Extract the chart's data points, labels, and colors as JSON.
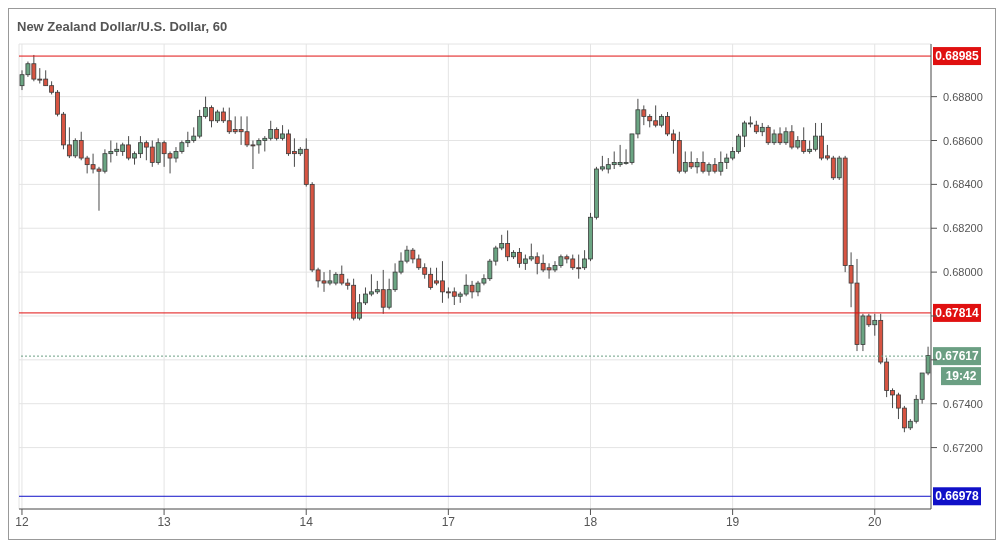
{
  "chart_data": {
    "type": "candlestick",
    "title": "New Zealand Dollar/U.S. Dollar, 60",
    "categories": [
      "12",
      null,
      null,
      null,
      null,
      null,
      null,
      null,
      null,
      null,
      null,
      null,
      null,
      null,
      null,
      null,
      null,
      null,
      null,
      null,
      null,
      null,
      null,
      null,
      "13",
      null,
      null,
      null,
      null,
      null,
      null,
      null,
      null,
      null,
      null,
      null,
      null,
      null,
      null,
      null,
      null,
      null,
      null,
      null,
      null,
      null,
      null,
      null,
      "14",
      null,
      null,
      null,
      null,
      null,
      null,
      null,
      null,
      null,
      null,
      null,
      null,
      null,
      null,
      null,
      null,
      null,
      null,
      null,
      null,
      null,
      null,
      null,
      "17",
      null,
      null,
      null,
      null,
      null,
      null,
      null,
      null,
      null,
      null,
      null,
      null,
      null,
      null,
      null,
      null,
      null,
      null,
      null,
      null,
      null,
      null,
      null,
      "18",
      null,
      null,
      null,
      null,
      null,
      null,
      null,
      null,
      null,
      null,
      null,
      null,
      null,
      null,
      null,
      null,
      null,
      null,
      null,
      null,
      null,
      null,
      null,
      "19",
      null,
      null,
      null,
      null,
      null,
      null,
      null,
      null,
      null,
      null,
      null,
      null,
      null,
      null,
      null,
      null,
      null,
      null,
      null,
      null,
      null,
      null,
      null,
      "20",
      null,
      null,
      null,
      null,
      null,
      null,
      null,
      null,
      null
    ],
    "ohlc": [
      [
        0.6885,
        0.6892,
        0.6883,
        0.689
      ],
      [
        0.689,
        0.6896,
        0.6889,
        0.6895
      ],
      [
        0.6895,
        0.6899,
        0.6887,
        0.6888
      ],
      [
        0.6888,
        0.6893,
        0.6886,
        0.6888
      ],
      [
        0.6888,
        0.6892,
        0.6885,
        0.6885
      ],
      [
        0.6885,
        0.6887,
        0.6881,
        0.6882
      ],
      [
        0.6882,
        0.6883,
        0.6871,
        0.6872
      ],
      [
        0.6872,
        0.6873,
        0.6856,
        0.6858
      ],
      [
        0.6858,
        0.6866,
        0.6852,
        0.6853
      ],
      [
        0.6853,
        0.6861,
        0.6852,
        0.686
      ],
      [
        0.686,
        0.6864,
        0.6851,
        0.6852
      ],
      [
        0.6852,
        0.6853,
        0.6845,
        0.6849
      ],
      [
        0.6849,
        0.6854,
        0.6845,
        0.6847
      ],
      [
        0.6847,
        0.6848,
        0.6828,
        0.6846
      ],
      [
        0.6846,
        0.6856,
        0.6845,
        0.6854
      ],
      [
        0.6854,
        0.686,
        0.685,
        0.6855
      ],
      [
        0.6855,
        0.6859,
        0.6853,
        0.6856
      ],
      [
        0.6855,
        0.6859,
        0.6853,
        0.6858
      ],
      [
        0.6858,
        0.6862,
        0.6851,
        0.6852
      ],
      [
        0.6852,
        0.6855,
        0.6849,
        0.6854
      ],
      [
        0.6854,
        0.6862,
        0.6852,
        0.6859
      ],
      [
        0.6859,
        0.686,
        0.6851,
        0.6857
      ],
      [
        0.6857,
        0.686,
        0.6848,
        0.685
      ],
      [
        0.685,
        0.6861,
        0.6849,
        0.6859
      ],
      [
        0.6859,
        0.686,
        0.6848,
        0.6854
      ],
      [
        0.6854,
        0.6855,
        0.6845,
        0.6852
      ],
      [
        0.6852,
        0.6857,
        0.685,
        0.6855
      ],
      [
        0.6855,
        0.686,
        0.6854,
        0.6859
      ],
      [
        0.6859,
        0.6864,
        0.6857,
        0.686
      ],
      [
        0.686,
        0.6866,
        0.6859,
        0.6862
      ],
      [
        0.6862,
        0.6874,
        0.6861,
        0.6871
      ],
      [
        0.6871,
        0.688,
        0.687,
        0.6875
      ],
      [
        0.6875,
        0.6876,
        0.6866,
        0.6869
      ],
      [
        0.6869,
        0.6874,
        0.6868,
        0.6873
      ],
      [
        0.6873,
        0.6875,
        0.6868,
        0.6869
      ],
      [
        0.6869,
        0.6875,
        0.6863,
        0.6864
      ],
      [
        0.6865,
        0.6871,
        0.6863,
        0.6864
      ],
      [
        0.6865,
        0.6871,
        0.6858,
        0.6864
      ],
      [
        0.6864,
        0.6871,
        0.6857,
        0.6858
      ],
      [
        0.6858,
        0.686,
        0.6847,
        0.6858
      ],
      [
        0.6858,
        0.6861,
        0.6854,
        0.686
      ],
      [
        0.686,
        0.6862,
        0.6855,
        0.6861
      ],
      [
        0.6861,
        0.6869,
        0.686,
        0.6865
      ],
      [
        0.6865,
        0.6866,
        0.686,
        0.6861
      ],
      [
        0.6861,
        0.6867,
        0.686,
        0.6863
      ],
      [
        0.6863,
        0.6865,
        0.6853,
        0.6854
      ],
      [
        0.6855,
        0.6861,
        0.6848,
        0.6854
      ],
      [
        0.6854,
        0.6857,
        0.6853,
        0.6856
      ],
      [
        0.6856,
        0.6861,
        0.6839,
        0.684
      ],
      [
        0.684,
        0.6841,
        0.68,
        0.6801
      ],
      [
        0.6801,
        0.6802,
        0.6793,
        0.6796
      ],
      [
        0.6796,
        0.68,
        0.6791,
        0.6795
      ],
      [
        0.6795,
        0.6801,
        0.6794,
        0.6796
      ],
      [
        0.6795,
        0.68,
        0.6794,
        0.6799
      ],
      [
        0.6799,
        0.6803,
        0.6794,
        0.6795
      ],
      [
        0.6795,
        0.6797,
        0.6792,
        0.6794
      ],
      [
        0.6794,
        0.6797,
        0.6778,
        0.6779
      ],
      [
        0.6779,
        0.679,
        0.6778,
        0.6786
      ],
      [
        0.6786,
        0.6793,
        0.6785,
        0.679
      ],
      [
        0.679,
        0.6799,
        0.6789,
        0.6791
      ],
      [
        0.6791,
        0.6796,
        0.679,
        0.6792
      ],
      [
        0.6792,
        0.6801,
        0.6781,
        0.6784
      ],
      [
        0.6784,
        0.6797,
        0.6783,
        0.6792
      ],
      [
        0.6792,
        0.6804,
        0.6791,
        0.68
      ],
      [
        0.68,
        0.6809,
        0.6799,
        0.6805
      ],
      [
        0.6805,
        0.6812,
        0.6804,
        0.681
      ],
      [
        0.681,
        0.6811,
        0.6804,
        0.6806
      ],
      [
        0.6806,
        0.6808,
        0.6801,
        0.6802
      ],
      [
        0.6802,
        0.6804,
        0.6797,
        0.6799
      ],
      [
        0.6799,
        0.6802,
        0.6792,
        0.6793
      ],
      [
        0.6796,
        0.6802,
        0.6794,
        0.6795
      ],
      [
        0.6796,
        0.6805,
        0.6786,
        0.6791
      ],
      [
        0.6791,
        0.6793,
        0.6788,
        0.6791
      ],
      [
        0.6791,
        0.6793,
        0.6785,
        0.6789
      ],
      [
        0.6789,
        0.6791,
        0.6786,
        0.679
      ],
      [
        0.679,
        0.6799,
        0.6789,
        0.6794
      ],
      [
        0.6794,
        0.6796,
        0.6788,
        0.6791
      ],
      [
        0.6791,
        0.6796,
        0.6789,
        0.6795
      ],
      [
        0.6795,
        0.6799,
        0.6794,
        0.6797
      ],
      [
        0.6797,
        0.6806,
        0.6796,
        0.6805
      ],
      [
        0.6805,
        0.6812,
        0.6803,
        0.6811
      ],
      [
        0.6811,
        0.6817,
        0.681,
        0.6813
      ],
      [
        0.6813,
        0.6819,
        0.6805,
        0.6807
      ],
      [
        0.6807,
        0.681,
        0.6806,
        0.6809
      ],
      [
        0.6809,
        0.6811,
        0.6802,
        0.6804
      ],
      [
        0.6804,
        0.6808,
        0.6801,
        0.6806
      ],
      [
        0.6806,
        0.6813,
        0.6805,
        0.6807
      ],
      [
        0.6807,
        0.6809,
        0.6799,
        0.6804
      ],
      [
        0.6804,
        0.6808,
        0.68,
        0.6801
      ],
      [
        0.6802,
        0.6804,
        0.6797,
        0.6801
      ],
      [
        0.6801,
        0.6805,
        0.68,
        0.6803
      ],
      [
        0.6803,
        0.6808,
        0.6802,
        0.6807
      ],
      [
        0.6807,
        0.6808,
        0.6804,
        0.6806
      ],
      [
        0.6806,
        0.6808,
        0.6801,
        0.6802
      ],
      [
        0.6802,
        0.6808,
        0.6797,
        0.6802
      ],
      [
        0.6802,
        0.681,
        0.6801,
        0.6806
      ],
      [
        0.6806,
        0.6827,
        0.6805,
        0.6825
      ],
      [
        0.6825,
        0.6848,
        0.6824,
        0.6847
      ],
      [
        0.6847,
        0.6853,
        0.6846,
        0.6848
      ],
      [
        0.6847,
        0.6852,
        0.6845,
        0.6849
      ],
      [
        0.6849,
        0.6855,
        0.6847,
        0.685
      ],
      [
        0.6849,
        0.6858,
        0.6848,
        0.685
      ],
      [
        0.685,
        0.6856,
        0.6849,
        0.685
      ],
      [
        0.685,
        0.6863,
        0.6849,
        0.6863
      ],
      [
        0.6863,
        0.6879,
        0.6861,
        0.6874
      ],
      [
        0.6874,
        0.6876,
        0.6867,
        0.6871
      ],
      [
        0.6871,
        0.6872,
        0.6866,
        0.6869
      ],
      [
        0.6869,
        0.6876,
        0.6866,
        0.6867
      ],
      [
        0.6867,
        0.6872,
        0.6866,
        0.6871
      ],
      [
        0.6871,
        0.6873,
        0.6862,
        0.6863
      ],
      [
        0.6863,
        0.6865,
        0.6854,
        0.686
      ],
      [
        0.686,
        0.6864,
        0.6845,
        0.6846
      ],
      [
        0.6846,
        0.6855,
        0.6845,
        0.685
      ],
      [
        0.685,
        0.6855,
        0.6847,
        0.6848
      ],
      [
        0.6848,
        0.6852,
        0.6845,
        0.685
      ],
      [
        0.685,
        0.6855,
        0.6845,
        0.6846
      ],
      [
        0.6846,
        0.685,
        0.6844,
        0.6849
      ],
      [
        0.6849,
        0.6852,
        0.6845,
        0.6846
      ],
      [
        0.6846,
        0.6855,
        0.6844,
        0.685
      ],
      [
        0.685,
        0.6854,
        0.6847,
        0.6852
      ],
      [
        0.6852,
        0.6857,
        0.6851,
        0.6855
      ],
      [
        0.6855,
        0.6863,
        0.6854,
        0.6862
      ],
      [
        0.6862,
        0.6869,
        0.6857,
        0.6868
      ],
      [
        0.6868,
        0.6871,
        0.6866,
        0.6868
      ],
      [
        0.6867,
        0.6869,
        0.6863,
        0.6864
      ],
      [
        0.6864,
        0.6868,
        0.6862,
        0.6866
      ],
      [
        0.6866,
        0.6867,
        0.6858,
        0.6859
      ],
      [
        0.6859,
        0.6865,
        0.6858,
        0.6863
      ],
      [
        0.6863,
        0.6866,
        0.6858,
        0.6859
      ],
      [
        0.6859,
        0.6866,
        0.6858,
        0.6864
      ],
      [
        0.6864,
        0.6867,
        0.6856,
        0.6857
      ],
      [
        0.6857,
        0.6862,
        0.6856,
        0.686
      ],
      [
        0.686,
        0.6866,
        0.6854,
        0.6855
      ],
      [
        0.6855,
        0.686,
        0.6854,
        0.6856
      ],
      [
        0.6856,
        0.6868,
        0.6855,
        0.6862
      ],
      [
        0.6862,
        0.6868,
        0.6851,
        0.6852
      ],
      [
        0.6853,
        0.6858,
        0.6851,
        0.6852
      ],
      [
        0.6852,
        0.6853,
        0.6842,
        0.6843
      ],
      [
        0.6843,
        0.6853,
        0.6842,
        0.6852
      ],
      [
        0.6852,
        0.6853,
        0.68,
        0.6803
      ],
      [
        0.6803,
        0.6809,
        0.6784,
        0.6795
      ],
      [
        0.6795,
        0.6806,
        0.6764,
        0.6767
      ],
      [
        0.6767,
        0.6781,
        0.6764,
        0.678
      ],
      [
        0.678,
        0.6781,
        0.6775,
        0.6776
      ],
      [
        0.6776,
        0.6781,
        0.6771,
        0.6778
      ],
      [
        0.6778,
        0.6781,
        0.6758,
        0.6759
      ],
      [
        0.6759,
        0.6761,
        0.6743,
        0.6746
      ],
      [
        0.6746,
        0.6747,
        0.6738,
        0.6744
      ],
      [
        0.6744,
        0.6745,
        0.6733,
        0.6738
      ],
      [
        0.6738,
        0.6739,
        0.6727,
        0.6729
      ],
      [
        0.6729,
        0.6733,
        0.6728,
        0.6732
      ],
      [
        0.6732,
        0.6744,
        0.6731,
        0.6742
      ],
      [
        0.6742,
        0.6754,
        0.674,
        0.6754
      ],
      [
        0.6754,
        0.6766,
        0.6753,
        0.6762
      ]
    ],
    "colors": [
      "#6ba583",
      "#6ba583",
      "#d75442",
      "#d75442",
      "#d75442",
      "#d75442",
      "#d75442",
      "#d75442",
      "#d75442",
      "#6ba583",
      "#d75442",
      "#d75442",
      "#d75442",
      "#d75442",
      "#6ba583",
      "#6ba583",
      "#6ba583",
      "#6ba583",
      "#d75442",
      "#6ba583",
      "#6ba583",
      "#d75442",
      "#d75442",
      "#6ba583",
      "#d75442",
      "#d75442",
      "#6ba583",
      "#6ba583",
      "#6ba583",
      "#6ba583",
      "#6ba583",
      "#6ba583",
      "#d75442",
      "#6ba583",
      "#d75442",
      "#d75442",
      "#d75442",
      "#d75442",
      "#d75442",
      "#d75442",
      "#6ba583",
      "#6ba583",
      "#6ba583",
      "#d75442",
      "#6ba583",
      "#d75442",
      "#d75442",
      "#6ba583",
      "#d75442",
      "#d75442",
      "#d75442",
      "#d75442",
      "#6ba583",
      "#6ba583",
      "#d75442",
      "#d75442",
      "#d75442",
      "#6ba583",
      "#6ba583",
      "#6ba583",
      "#6ba583",
      "#d75442",
      "#6ba583",
      "#6ba583",
      "#6ba583",
      "#6ba583",
      "#d75442",
      "#d75442",
      "#d75442",
      "#d75442",
      "#d75442",
      "#d75442",
      "#d75442",
      "#d75442",
      "#6ba583",
      "#6ba583",
      "#d75442",
      "#6ba583",
      "#6ba583",
      "#6ba583",
      "#6ba583",
      "#6ba583",
      "#d75442",
      "#6ba583",
      "#d75442",
      "#6ba583",
      "#6ba583",
      "#d75442",
      "#d75442",
      "#d75442",
      "#6ba583",
      "#6ba583",
      "#d75442",
      "#d75442",
      "#d75442",
      "#6ba583",
      "#6ba583",
      "#6ba583",
      "#6ba583",
      "#6ba583",
      "#6ba583",
      "#6ba583",
      "#6ba583",
      "#6ba583",
      "#6ba583",
      "#d75442",
      "#d75442",
      "#d75442",
      "#6ba583",
      "#d75442",
      "#d75442",
      "#d75442",
      "#6ba583",
      "#d75442",
      "#6ba583",
      "#d75442",
      "#6ba583",
      "#d75442",
      "#6ba583",
      "#6ba583",
      "#6ba583",
      "#6ba583",
      "#6ba583",
      "#6ba583",
      "#d75442",
      "#6ba583",
      "#d75442",
      "#6ba583",
      "#d75442",
      "#6ba583",
      "#d75442",
      "#6ba583",
      "#d75442",
      "#6ba583",
      "#6ba583",
      "#d75442",
      "#d75442",
      "#d75442",
      "#6ba583",
      "#d75442",
      "#d75442",
      "#d75442",
      "#6ba583",
      "#d75442",
      "#6ba583",
      "#d75442",
      "#d75442",
      "#d75442",
      "#d75442",
      "#d75442",
      "#6ba583",
      "#6ba583",
      "#6ba583",
      "#6ba583"
    ],
    "ylim": [
      0.6692,
      0.6904
    ],
    "yticks": [
      {
        "value": 0.672,
        "label": "0.67200"
      },
      {
        "value": 0.674,
        "label": "0.67400"
      },
      {
        "value": 0.676,
        "label": null
      },
      {
        "value": 0.678,
        "label": null
      },
      {
        "value": 0.68,
        "label": "0.68000"
      },
      {
        "value": 0.682,
        "label": "0.68200"
      },
      {
        "value": 0.684,
        "label": "0.68400"
      },
      {
        "value": 0.686,
        "label": "0.68600"
      },
      {
        "value": 0.688,
        "label": "0.68800"
      }
    ],
    "grid": true,
    "ref_lines": [
      {
        "axis": "y",
        "value": 0.68985,
        "label": "0.68985",
        "color": "#e01010",
        "line_style": "solid"
      },
      {
        "axis": "y",
        "value": 0.67814,
        "label": "0.67814",
        "color": "#e01010",
        "line_style": "solid"
      },
      {
        "axis": "y",
        "value": 0.66978,
        "label": "0.66978",
        "color": "#1010c8",
        "line_style": "solid"
      },
      {
        "axis": "y",
        "value": 0.67617,
        "label": "0.67617",
        "color": "#6b9f83",
        "line_style": "dotted"
      }
    ],
    "annotations": [
      "19:42"
    ]
  }
}
